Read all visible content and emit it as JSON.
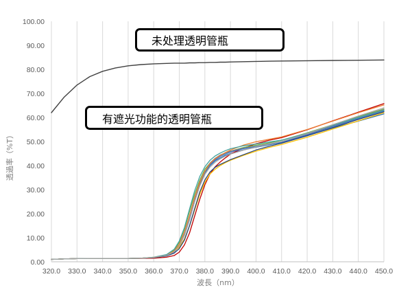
{
  "chart_data": {
    "type": "line",
    "title": "",
    "xlabel": "波長（nm）",
    "ylabel": "透過率（%T）",
    "xlim": [
      320,
      450
    ],
    "ylim": [
      0,
      100
    ],
    "x_ticks": [
      "320.0",
      "330.0",
      "340.0",
      "350.0",
      "360.0",
      "370.0",
      "380.0",
      "390.0",
      "400.0",
      "410.0",
      "420.0",
      "430.0",
      "440.0",
      "450.0"
    ],
    "y_ticks": [
      "0.00",
      "10.00",
      "20.00",
      "30.00",
      "40.00",
      "50.00",
      "60.00",
      "70.00",
      "80.00",
      "90.00",
      "100.00"
    ],
    "grid": "vertical",
    "annotations": [
      {
        "text": "未处理透明管瓶"
      },
      {
        "text": "有遮光功能的透明管瓶"
      }
    ],
    "x": [
      320,
      325,
      330,
      335,
      340,
      345,
      350,
      355,
      360,
      365,
      368,
      370,
      372,
      374,
      376,
      378,
      380,
      382,
      384,
      386,
      388,
      390,
      395,
      400,
      405,
      410,
      420,
      430,
      440,
      450
    ],
    "series": [
      {
        "color": "#404040",
        "values": [
          62,
          68.5,
          73.5,
          77,
          79.2,
          80.6,
          81.5,
          82,
          82.3,
          82.5,
          82.6,
          82.6,
          82.6,
          82.7,
          82.7,
          82.8,
          82.8,
          82.9,
          82.9,
          83,
          83,
          83.1,
          83.2,
          83.3,
          83.4,
          83.5,
          83.6,
          83.7,
          83.8,
          83.9
        ]
      },
      {
        "color": "#2e75b6",
        "values": [
          1,
          1.2,
          1.3,
          1.4,
          1.4,
          1.4,
          1.4,
          1.5,
          1.7,
          2.5,
          4,
          6.5,
          11,
          17.5,
          25,
          32,
          37,
          40,
          42,
          43.2,
          44.3,
          45,
          46.5,
          47.6,
          48.6,
          49.6,
          52.5,
          55.6,
          58.5,
          61.5
        ]
      },
      {
        "color": "#c00000",
        "values": [
          1,
          1.2,
          1.3,
          1.4,
          1.4,
          1.4,
          1.4,
          1.4,
          1.5,
          1.9,
          2.6,
          4,
          7,
          12,
          19,
          26,
          32,
          36.5,
          39.5,
          41.5,
          43.2,
          44.8,
          47.3,
          49.1,
          50.5,
          51.6,
          54.9,
          58.6,
          62.2,
          65.8
        ]
      },
      {
        "color": "#70ad47",
        "values": [
          1,
          1.2,
          1.3,
          1.4,
          1.4,
          1.4,
          1.4,
          1.5,
          1.8,
          2.8,
          4.8,
          8,
          13.5,
          21,
          28,
          34,
          38.5,
          41,
          43,
          44.2,
          45.2,
          46,
          47.5,
          48.5,
          49.4,
          50.5,
          53.6,
          57,
          60.4,
          63.5
        ]
      },
      {
        "color": "#7f7f7f",
        "values": [
          1,
          1.2,
          1.3,
          1.4,
          1.4,
          1.4,
          1.4,
          1.5,
          1.8,
          2.6,
          4.2,
          7,
          12,
          18.5,
          26,
          32.5,
          37.5,
          41,
          43,
          44.4,
          45.3,
          46,
          47.2,
          48,
          49,
          50,
          53,
          56.5,
          60,
          63.2
        ]
      },
      {
        "color": "#ffc000",
        "values": [
          1,
          1.2,
          1.3,
          1.4,
          1.4,
          1.4,
          1.4,
          1.5,
          1.9,
          2.9,
          4.3,
          6,
          9.5,
          15,
          21.5,
          28,
          33,
          36.5,
          38.5,
          40,
          41.2,
          42.2,
          44.2,
          46,
          47.5,
          48.8,
          51.8,
          55.2,
          58.6,
          62
        ]
      },
      {
        "color": "#4472c4",
        "values": [
          1,
          1.2,
          1.3,
          1.4,
          1.4,
          1.4,
          1.4,
          1.5,
          1.8,
          2.7,
          4.2,
          7,
          12,
          19,
          26.5,
          33,
          37.5,
          40.5,
          42.4,
          43.8,
          44.8,
          45.6,
          47,
          47.9,
          48.8,
          49.8,
          52.8,
          56.2,
          59.6,
          62.8
        ]
      },
      {
        "color": "#264478",
        "values": [
          1,
          1.2,
          1.3,
          1.4,
          1.4,
          1.4,
          1.4,
          1.5,
          1.7,
          2.4,
          3.6,
          5.5,
          9,
          15,
          22,
          29,
          34,
          37.3,
          39.3,
          40.5,
          41.5,
          42.5,
          44.5,
          46.5,
          48,
          49.3,
          52.4,
          55.8,
          59.2,
          62.4
        ]
      },
      {
        "color": "#ed7d31",
        "values": [
          1,
          1.2,
          1.3,
          1.4,
          1.4,
          1.4,
          1.4,
          1.5,
          1.8,
          2.7,
          4.4,
          7.2,
          12.3,
          19.2,
          26.6,
          33,
          37.6,
          40.8,
          42.8,
          44.2,
          45.4,
          46.5,
          48.5,
          49.9,
          50.9,
          51.9,
          55,
          58.5,
          62,
          65.2
        ]
      },
      {
        "color": "#43a3a0",
        "values": [
          1,
          1.2,
          1.3,
          1.4,
          1.4,
          1.4,
          1.4,
          1.5,
          1.9,
          3,
          5.2,
          8.6,
          14.2,
          22,
          29.5,
          35.5,
          39.5,
          42.2,
          44,
          45.2,
          46.2,
          47,
          48.2,
          49,
          49.8,
          50.6,
          53.4,
          56.7,
          60,
          63
        ]
      },
      {
        "color": "#a5a5a5",
        "values": [
          1,
          1.2,
          1.3,
          1.4,
          1.4,
          1.4,
          1.4,
          1.5,
          1.8,
          2.6,
          4.1,
          6.6,
          11.2,
          17.8,
          25,
          31.5,
          36.3,
          39.4,
          41.4,
          42.8,
          43.9,
          44.8,
          46.4,
          47.7,
          48.9,
          50,
          53.3,
          57,
          60.6,
          64
        ]
      }
    ]
  }
}
